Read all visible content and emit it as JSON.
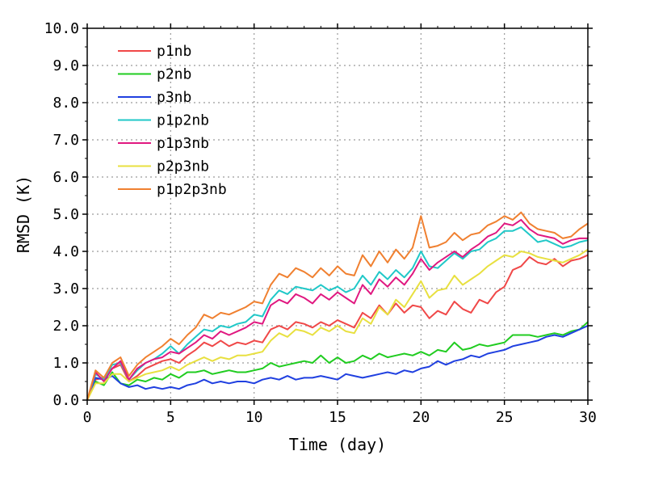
{
  "chart_data": {
    "type": "line",
    "xlabel": "Time (day)",
    "ylabel": "RMSD (K)",
    "xlim": [
      0,
      30
    ],
    "ylim": [
      0,
      10
    ],
    "x_ticks": [
      "0",
      "5",
      "10",
      "15",
      "20",
      "25",
      "30"
    ],
    "y_ticks": [
      "0.0",
      "1.0",
      "2.0",
      "3.0",
      "4.0",
      "5.0",
      "6.0",
      "7.0",
      "8.0",
      "9.0",
      "10.0"
    ],
    "grid": true,
    "legend_position": "top-left",
    "x": [
      0,
      0.5,
      1,
      1.5,
      2,
      2.5,
      3,
      3.5,
      4,
      4.5,
      5,
      5.5,
      6,
      6.5,
      7,
      7.5,
      8,
      8.5,
      9,
      9.5,
      10,
      10.5,
      11,
      11.5,
      12,
      12.5,
      13,
      13.5,
      14,
      14.5,
      15,
      15.5,
      16,
      16.5,
      17,
      17.5,
      18,
      18.5,
      19,
      19.5,
      20,
      20.5,
      21,
      21.5,
      22,
      22.5,
      23,
      23.5,
      24,
      24.5,
      25,
      25.5,
      26,
      26.5,
      27,
      27.5,
      28,
      28.5,
      29,
      29.5,
      30
    ],
    "series": [
      {
        "name": "p1nb",
        "color": "#f04848",
        "values": [
          0,
          0.55,
          0.6,
          0.85,
          0.95,
          0.5,
          0.65,
          0.85,
          0.95,
          1.05,
          1.1,
          1.0,
          1.2,
          1.35,
          1.55,
          1.45,
          1.6,
          1.45,
          1.55,
          1.5,
          1.6,
          1.55,
          1.9,
          2.0,
          1.9,
          2.1,
          2.05,
          1.95,
          2.1,
          2.0,
          2.15,
          2.05,
          1.95,
          2.35,
          2.2,
          2.55,
          2.3,
          2.6,
          2.35,
          2.55,
          2.5,
          2.2,
          2.4,
          2.3,
          2.65,
          2.45,
          2.35,
          2.7,
          2.6,
          2.9,
          3.05,
          3.5,
          3.6,
          3.85,
          3.7,
          3.65,
          3.8,
          3.6,
          3.75,
          3.8,
          3.9
        ]
      },
      {
        "name": "p2nb",
        "color": "#20cc20",
        "values": [
          0,
          0.5,
          0.4,
          0.75,
          0.45,
          0.4,
          0.55,
          0.5,
          0.6,
          0.55,
          0.7,
          0.6,
          0.75,
          0.75,
          0.8,
          0.7,
          0.75,
          0.8,
          0.75,
          0.75,
          0.8,
          0.85,
          1.0,
          0.9,
          0.95,
          1.0,
          1.05,
          1.0,
          1.2,
          1.0,
          1.15,
          1.0,
          1.05,
          1.2,
          1.1,
          1.25,
          1.15,
          1.2,
          1.25,
          1.2,
          1.3,
          1.2,
          1.35,
          1.3,
          1.55,
          1.35,
          1.4,
          1.5,
          1.45,
          1.5,
          1.55,
          1.75,
          1.75,
          1.75,
          1.7,
          1.75,
          1.8,
          1.75,
          1.85,
          1.9,
          2.1
        ]
      },
      {
        "name": "p3nb",
        "color": "#2040e0",
        "values": [
          0,
          0.6,
          0.55,
          0.65,
          0.45,
          0.35,
          0.4,
          0.3,
          0.35,
          0.3,
          0.35,
          0.3,
          0.4,
          0.45,
          0.55,
          0.45,
          0.5,
          0.45,
          0.5,
          0.5,
          0.45,
          0.55,
          0.6,
          0.55,
          0.65,
          0.55,
          0.6,
          0.6,
          0.65,
          0.6,
          0.55,
          0.7,
          0.65,
          0.6,
          0.65,
          0.7,
          0.75,
          0.7,
          0.8,
          0.75,
          0.85,
          0.9,
          1.05,
          0.95,
          1.05,
          1.1,
          1.2,
          1.15,
          1.25,
          1.3,
          1.35,
          1.45,
          1.5,
          1.55,
          1.6,
          1.7,
          1.75,
          1.7,
          1.8,
          1.9,
          2.0
        ]
      },
      {
        "name": "p1p2nb",
        "color": "#20c8c8",
        "values": [
          0,
          0.7,
          0.55,
          0.95,
          1.0,
          0.55,
          0.8,
          1.0,
          1.1,
          1.25,
          1.45,
          1.25,
          1.5,
          1.7,
          1.9,
          1.85,
          2.0,
          1.95,
          2.05,
          2.1,
          2.3,
          2.25,
          2.7,
          2.95,
          2.85,
          3.05,
          3.0,
          2.95,
          3.1,
          2.95,
          3.05,
          2.9,
          3.0,
          3.35,
          3.1,
          3.45,
          3.25,
          3.5,
          3.3,
          3.55,
          4.0,
          3.6,
          3.55,
          3.75,
          3.95,
          3.8,
          4.0,
          4.05,
          4.25,
          4.35,
          4.55,
          4.55,
          4.65,
          4.45,
          4.25,
          4.3,
          4.2,
          4.1,
          4.15,
          4.25,
          4.3
        ]
      },
      {
        "name": "p1p3nb",
        "color": "#e01880",
        "values": [
          0,
          0.75,
          0.5,
          0.85,
          1.05,
          0.55,
          0.85,
          1.0,
          1.1,
          1.15,
          1.3,
          1.25,
          1.4,
          1.55,
          1.75,
          1.65,
          1.85,
          1.75,
          1.85,
          1.95,
          2.1,
          2.05,
          2.55,
          2.7,
          2.6,
          2.85,
          2.75,
          2.6,
          2.85,
          2.7,
          2.9,
          2.75,
          2.6,
          3.1,
          2.85,
          3.25,
          3.05,
          3.3,
          3.1,
          3.4,
          3.8,
          3.5,
          3.7,
          3.85,
          4.0,
          3.85,
          4.05,
          4.2,
          4.4,
          4.5,
          4.75,
          4.7,
          4.85,
          4.6,
          4.45,
          4.4,
          4.35,
          4.2,
          4.3,
          4.35,
          4.35
        ]
      },
      {
        "name": "p2p3nb",
        "color": "#e8e040",
        "values": [
          0,
          0.45,
          0.45,
          0.7,
          0.7,
          0.5,
          0.6,
          0.7,
          0.75,
          0.8,
          0.9,
          0.8,
          0.95,
          1.05,
          1.15,
          1.05,
          1.15,
          1.1,
          1.2,
          1.2,
          1.25,
          1.3,
          1.6,
          1.8,
          1.7,
          1.9,
          1.85,
          1.75,
          1.95,
          1.85,
          2.0,
          1.85,
          1.8,
          2.2,
          2.05,
          2.5,
          2.3,
          2.7,
          2.5,
          2.85,
          3.2,
          2.75,
          2.95,
          3.0,
          3.35,
          3.1,
          3.25,
          3.4,
          3.6,
          3.75,
          3.9,
          3.85,
          4.0,
          3.95,
          3.85,
          3.8,
          3.75,
          3.7,
          3.8,
          3.9,
          4.05
        ]
      },
      {
        "name": "p1p2p3nb",
        "color": "#f08030",
        "values": [
          0,
          0.8,
          0.6,
          1.0,
          1.15,
          0.65,
          0.95,
          1.15,
          1.3,
          1.45,
          1.65,
          1.5,
          1.75,
          1.95,
          2.3,
          2.2,
          2.35,
          2.3,
          2.4,
          2.5,
          2.65,
          2.6,
          3.1,
          3.4,
          3.3,
          3.55,
          3.45,
          3.3,
          3.55,
          3.35,
          3.6,
          3.4,
          3.35,
          3.9,
          3.6,
          4.0,
          3.7,
          4.05,
          3.8,
          4.1,
          4.95,
          4.1,
          4.15,
          4.25,
          4.5,
          4.3,
          4.45,
          4.5,
          4.7,
          4.8,
          4.95,
          4.85,
          5.05,
          4.75,
          4.6,
          4.55,
          4.5,
          4.35,
          4.4,
          4.6,
          4.75
        ]
      }
    ]
  }
}
